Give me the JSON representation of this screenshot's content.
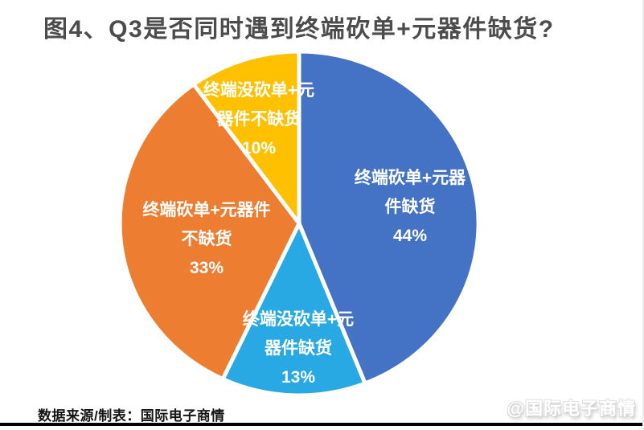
{
  "title": "图4、Q3是否同时遇到终端砍单+元器件缺货?",
  "source_note": "数据来源/制表：国际电子商情",
  "watermark": "@国际电子商情",
  "chart_data": {
    "type": "pie",
    "title": "图4、Q3是否同时遇到终端砍单+元器件缺货?",
    "start_angle_deg": 0,
    "direction": "clockwise",
    "legend": "none",
    "label_text_color": "#FFFFFF",
    "separator_color": "#FFFFFF",
    "slices": [
      {
        "label": "终端砍单+元器件缺货",
        "label_lines": [
          "终端砍单+元器",
          "件缺货"
        ],
        "value": 44,
        "pct_label": "44%",
        "color": "#4472C4"
      },
      {
        "label": "终端没砍单+元器件缺货",
        "label_lines": [
          "终端没砍单+元",
          "器件缺货"
        ],
        "value": 13,
        "pct_label": "13%",
        "color": "#29A9E3"
      },
      {
        "label": "终端砍单+元器件不缺货",
        "label_lines": [
          "终端砍单+元器件",
          "不缺货"
        ],
        "value": 33,
        "pct_label": "33%",
        "color": "#ED7D31"
      },
      {
        "label": "终端没砍单+元器件不缺货",
        "label_lines": [
          "终端没砍单+元",
          "器件不缺货"
        ],
        "value": 10,
        "pct_label": "10%",
        "color": "#FFC000"
      }
    ]
  },
  "colors": {
    "title_text": "#4C4C4C",
    "source_text": "#141414",
    "bottom_rule": "#000000",
    "background": "#FFFFFF"
  }
}
